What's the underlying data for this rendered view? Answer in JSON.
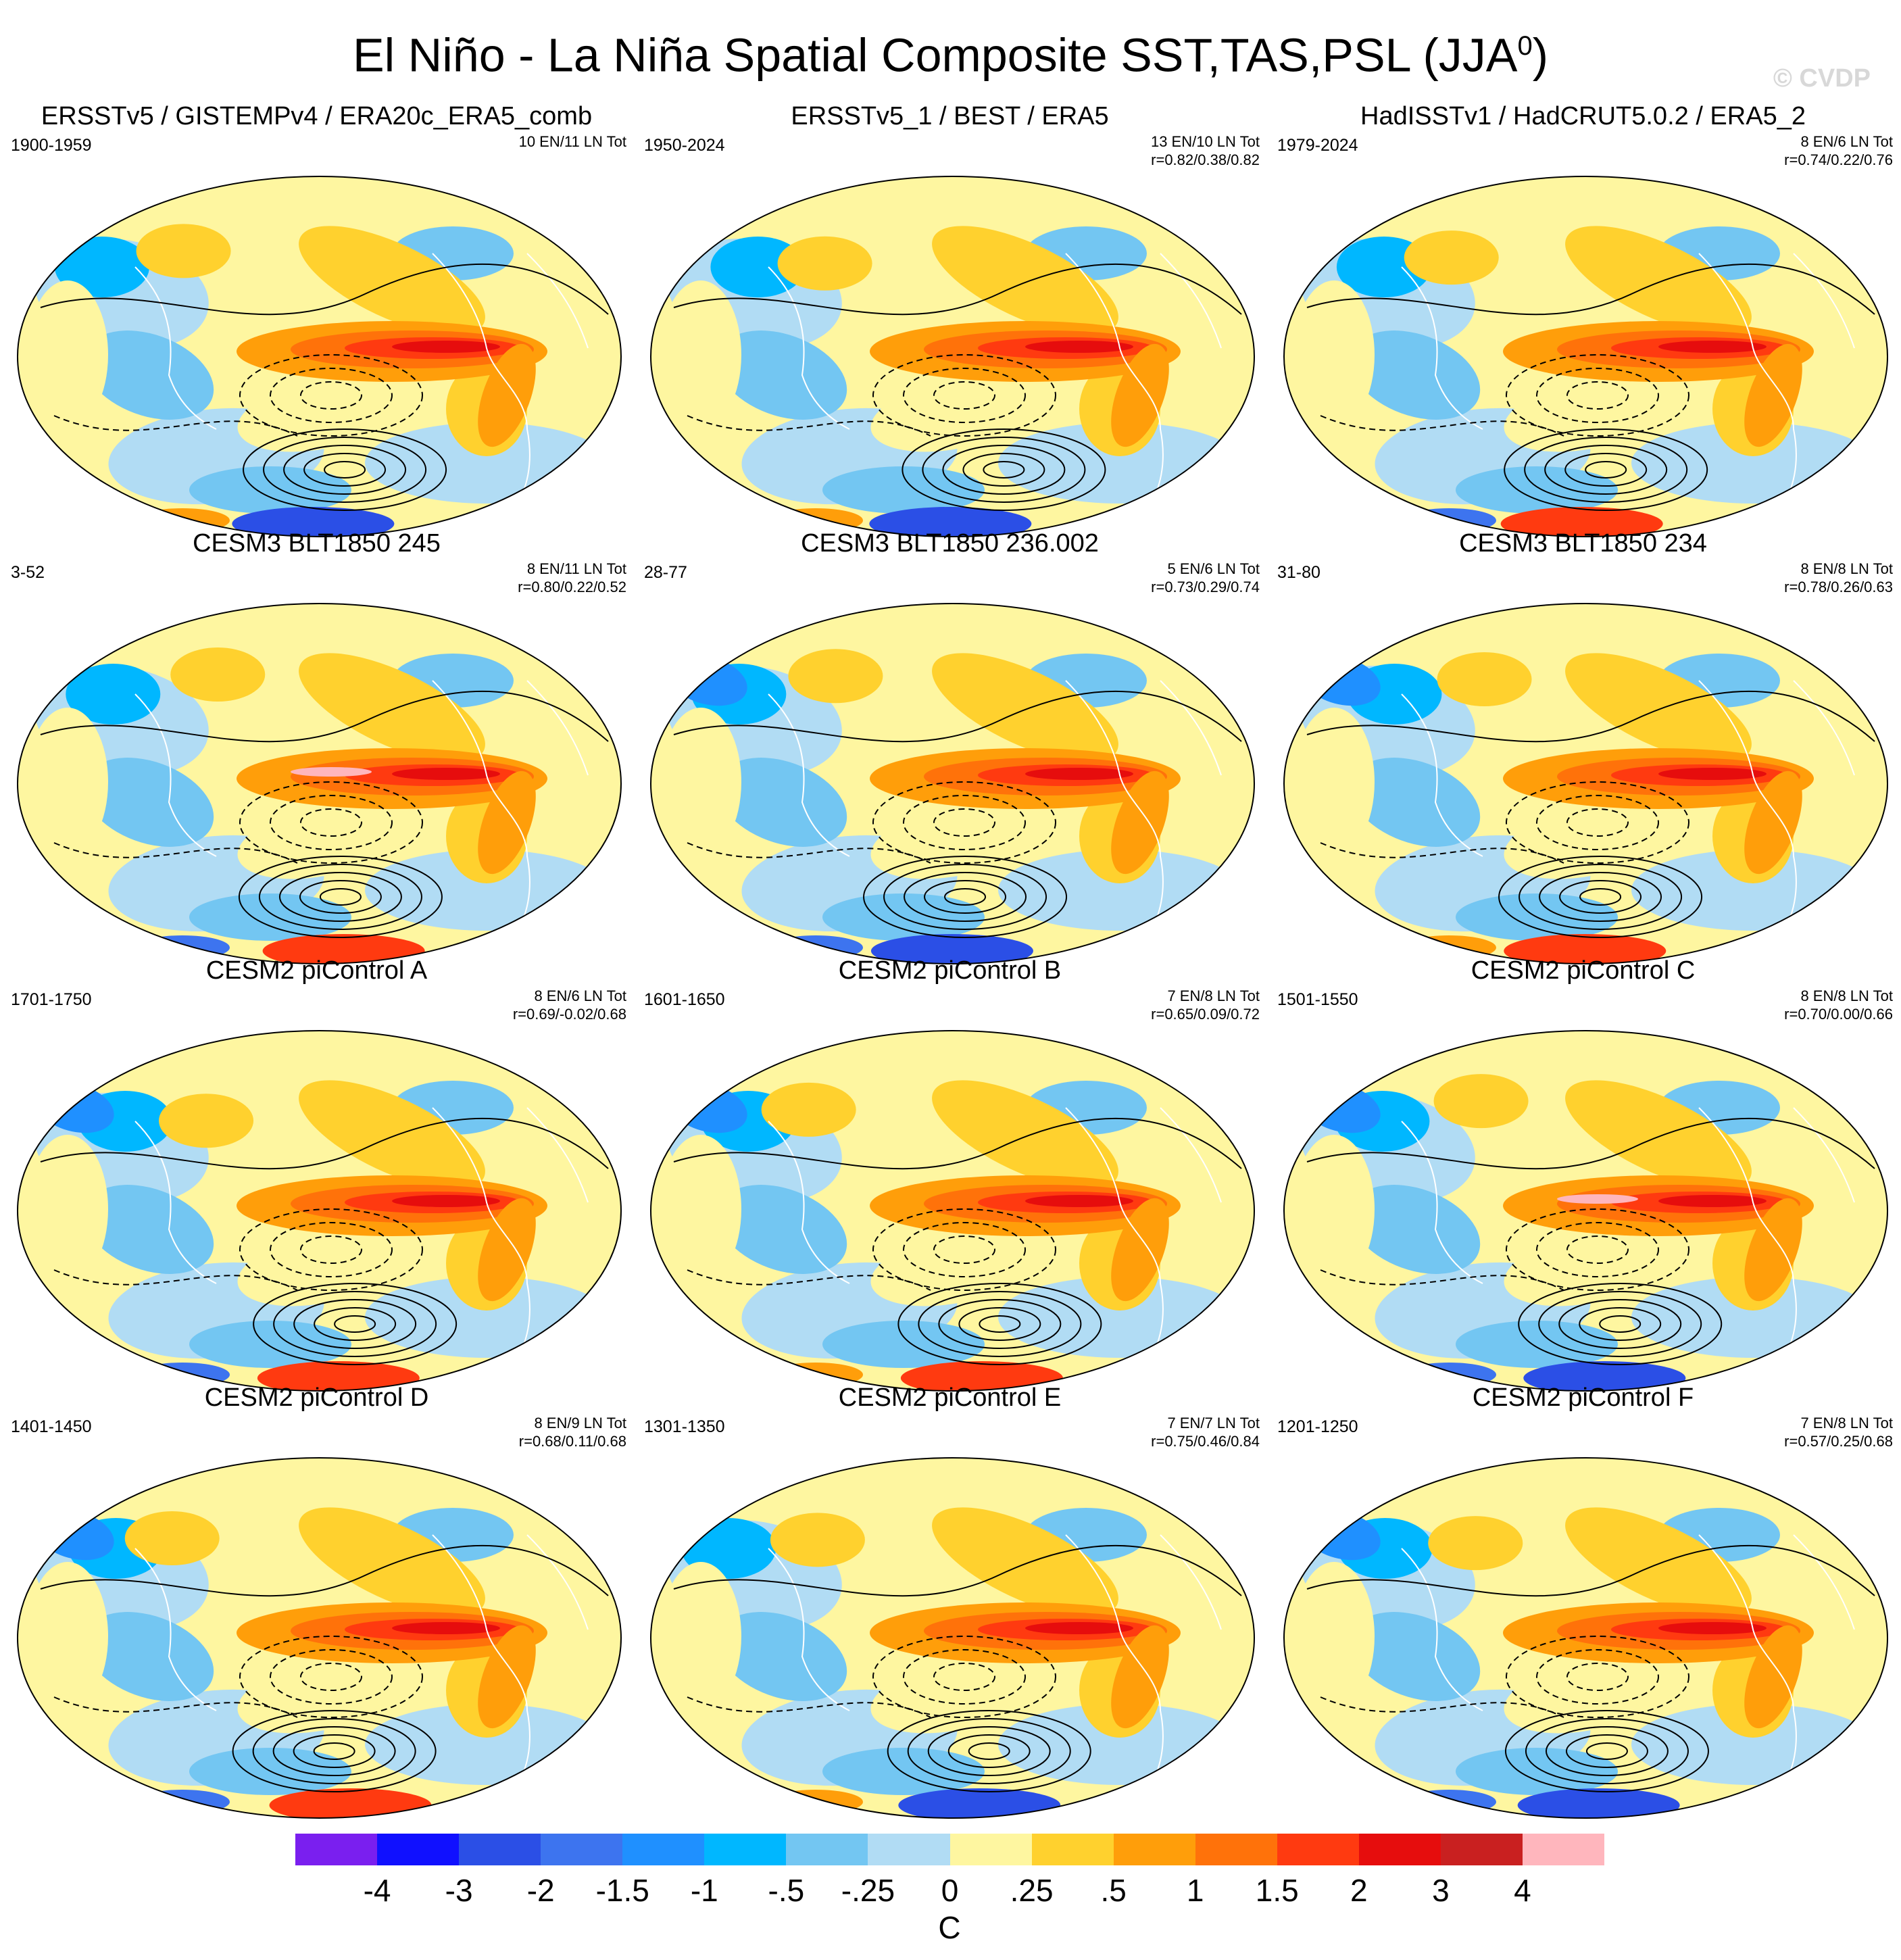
{
  "title": {
    "main": "El Niño - La Niña Spatial Composite SST,TAS,PSL (JJA",
    "superscript": "0",
    "closing": ")"
  },
  "watermark": "© CVDP",
  "colors": {
    "palette": [
      "#7a1fef",
      "#1010ff",
      "#2b4fe6",
      "#3d74ef",
      "#1f90ff",
      "#00b7ff",
      "#73c6f2",
      "#b1dcf4",
      "#fef6a0",
      "#ffd12e",
      "#ff9e0a",
      "#ff720a",
      "#ff3a10",
      "#e60d0d",
      "#c92020",
      "#ffb6bd"
    ],
    "land_outline": "#ffffff",
    "contour": "#000000"
  },
  "panels": [
    {
      "title": "ERSSTv5 / GISTEMPv4 / ERA20c_ERA5_comb",
      "years": "1900-1959",
      "counts": "10 EN/11 LN Tot",
      "corr": ""
    },
    {
      "title": "ERSSTv5_1 / BEST / ERA5",
      "years": "1950-2024",
      "counts": "13 EN/10 LN Tot",
      "corr": "r=0.82/0.38/0.82"
    },
    {
      "title": "HadISSTv1 / HadCRUT5.0.2 / ERA5_2",
      "years": "1979-2024",
      "counts": "8 EN/6 LN Tot",
      "corr": "r=0.74/0.22/0.76"
    },
    {
      "title": "CESM3 BLT1850 245",
      "years": "3-52",
      "counts": "8 EN/11 LN Tot",
      "corr": "r=0.80/0.22/0.52"
    },
    {
      "title": "CESM3 BLT1850 236.002",
      "years": "28-77",
      "counts": "5 EN/6 LN Tot",
      "corr": "r=0.73/0.29/0.74"
    },
    {
      "title": "CESM3 BLT1850 234",
      "years": "31-80",
      "counts": "8 EN/8 LN Tot",
      "corr": "r=0.78/0.26/0.63"
    },
    {
      "title": "CESM2 piControl A",
      "years": "1701-1750",
      "counts": "8 EN/6 LN Tot",
      "corr": "r=0.69/-0.02/0.68"
    },
    {
      "title": "CESM2 piControl B",
      "years": "1601-1650",
      "counts": "7 EN/8 LN Tot",
      "corr": "r=0.65/0.09/0.72"
    },
    {
      "title": "CESM2 piControl C",
      "years": "1501-1550",
      "counts": "8 EN/8 LN Tot",
      "corr": "r=0.70/0.00/0.66"
    },
    {
      "title": "CESM2 piControl D",
      "years": "1401-1450",
      "counts": "8 EN/9 LN Tot",
      "corr": "r=0.68/0.11/0.68"
    },
    {
      "title": "CESM2 piControl E",
      "years": "1301-1350",
      "counts": "7 EN/7 LN Tot",
      "corr": "r=0.75/0.46/0.84"
    },
    {
      "title": "CESM2 piControl F",
      "years": "1201-1250",
      "counts": "7 EN/8 LN Tot",
      "corr": "r=0.57/0.25/0.68"
    }
  ],
  "colorbar": {
    "labels": [
      "-4",
      "-3",
      "-2",
      "-1.5",
      "-1",
      "-.5",
      "-.25",
      "0",
      ".25",
      ".5",
      "1",
      "1.5",
      "2",
      "3",
      "4"
    ],
    "units": "C"
  }
}
